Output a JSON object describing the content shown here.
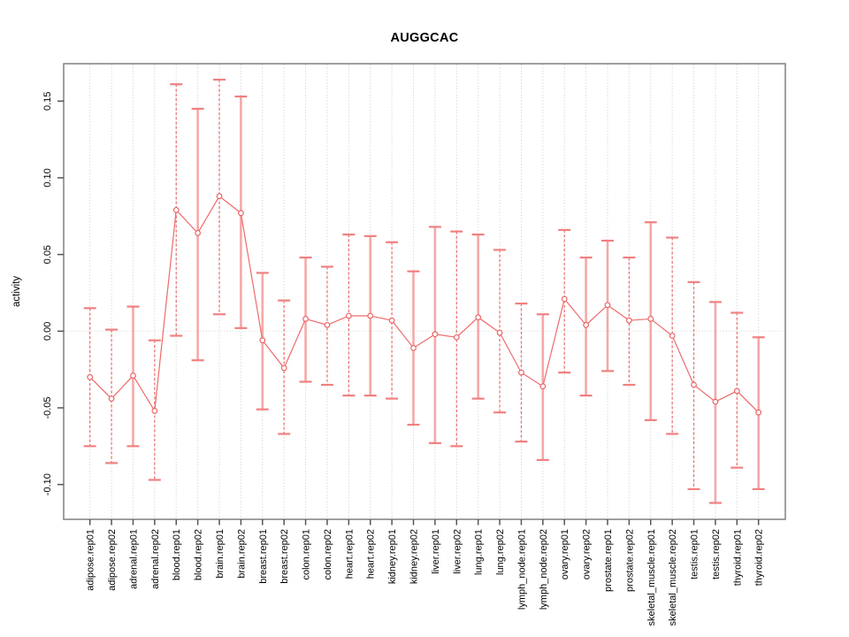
{
  "title": "AUGGCAC",
  "colors": {
    "series_line": "#ee6a6a",
    "marker_stroke": "#ec6666",
    "marker_fill": "#ffffff",
    "errorbar_dashed": "#ee6a6a",
    "errorbar_solid": "#f5a8a8",
    "errorbar_cap": "#f08080",
    "gridline": "#cccccc",
    "zero_line": "#d5d5d5",
    "axis_box": "#878787",
    "tick_mark": "#555555",
    "text": "#000000",
    "background": "#ffffff"
  },
  "chart_data": {
    "type": "line",
    "title": "AUGGCAC",
    "xlabel": "",
    "ylabel": "activity",
    "legend": "none",
    "grid": "vertical dotted gridline at every category; horizontal dotted line at y=0 only",
    "marker": "open-circle",
    "ylim": [
      -0.1227,
      0.1744
    ],
    "ytick_values": [
      0.15,
      0.1,
      0.05,
      0.0,
      -0.05,
      -0.1
    ],
    "ytick_labels": [
      "0.15",
      "0.10",
      "0.05",
      "0.00",
      "-0.05",
      "-0.10"
    ],
    "categories": [
      "adipose.rep01",
      "adipose.rep02",
      "adrenal.rep01",
      "adrenal.rep02",
      "blood.rep01",
      "blood.rep02",
      "brain.rep01",
      "brain.rep02",
      "breast.rep01",
      "breast.rep02",
      "colon.rep01",
      "colon.rep02",
      "heart.rep01",
      "heart.rep02",
      "kidney.rep01",
      "kidney.rep02",
      "liver.rep01",
      "liver.rep02",
      "lung.rep01",
      "lung.rep02",
      "lymph_node.rep01",
      "lymph_node.rep02",
      "ovary.rep01",
      "ovary.rep02",
      "prostate.rep01",
      "prostate.rep02",
      "skeletal_muscle.rep01",
      "skeletal_muscle.rep02",
      "testis.rep01",
      "testis.rep02",
      "thyroid.rep01",
      "thyroid.rep02"
    ],
    "series": [
      {
        "name": "activity",
        "values": [
          -0.03,
          -0.044,
          -0.029,
          -0.052,
          0.079,
          0.064,
          0.088,
          0.077,
          -0.006,
          -0.024,
          0.008,
          0.004,
          0.01,
          0.01,
          0.007,
          -0.011,
          -0.002,
          -0.004,
          0.009,
          -0.001,
          -0.027,
          -0.036,
          0.021,
          0.004,
          0.017,
          0.007,
          0.008,
          -0.003,
          -0.035,
          -0.046,
          -0.039,
          -0.053
        ],
        "error_low": [
          -0.075,
          -0.086,
          -0.075,
          -0.097,
          -0.003,
          -0.019,
          0.011,
          0.002,
          -0.051,
          -0.067,
          -0.033,
          -0.035,
          -0.042,
          -0.042,
          -0.044,
          -0.061,
          -0.073,
          -0.075,
          -0.044,
          -0.053,
          -0.072,
          -0.084,
          -0.027,
          -0.042,
          -0.026,
          -0.035,
          -0.058,
          -0.067,
          -0.103,
          -0.112,
          -0.089,
          -0.103
        ],
        "error_high": [
          0.015,
          0.001,
          0.016,
          -0.006,
          0.161,
          0.145,
          0.164,
          0.153,
          0.038,
          0.02,
          0.048,
          0.042,
          0.063,
          0.062,
          0.058,
          0.039,
          0.068,
          0.065,
          0.063,
          0.053,
          0.018,
          0.011,
          0.066,
          0.048,
          0.059,
          0.048,
          0.071,
          0.061,
          0.032,
          0.019,
          0.012,
          -0.004
        ],
        "bar_styles": [
          "dashed",
          "dashed",
          "solid",
          "dashed",
          "dashed",
          "solid",
          "dashed",
          "solid",
          "solid",
          "dashed",
          "solid",
          "dashed",
          "dashed",
          "solid",
          "dashed",
          "solid",
          "solid",
          "dashed",
          "solid",
          "dashed",
          "dashed",
          "solid",
          "dashed",
          "solid",
          "solid",
          "dashed",
          "solid",
          "dashed",
          "dashed",
          "solid",
          "dashed",
          "solid"
        ]
      }
    ]
  }
}
